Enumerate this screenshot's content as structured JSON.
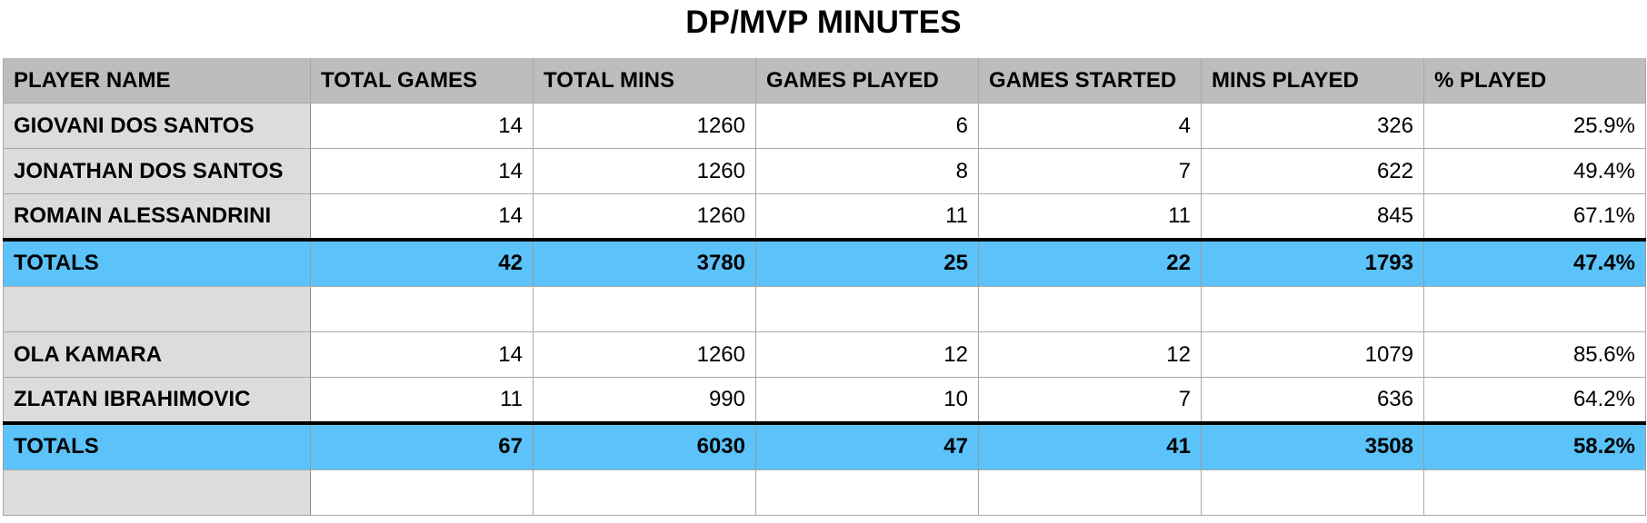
{
  "title": "DP/MVP MINUTES",
  "columns": [
    "PLAYER NAME",
    "TOTAL GAMES",
    "TOTAL MINS",
    "GAMES PLAYED",
    "GAMES STARTED",
    "MINS PLAYED",
    "% PLAYED"
  ],
  "rows": [
    {
      "type": "player",
      "cells": [
        "GIOVANI DOS SANTOS",
        "14",
        "1260",
        "6",
        "4",
        "326",
        "25.9%"
      ]
    },
    {
      "type": "player",
      "cells": [
        "JONATHAN DOS SANTOS",
        "14",
        "1260",
        "8",
        "7",
        "622",
        "49.4%"
      ]
    },
    {
      "type": "player",
      "cells": [
        "ROMAIN ALESSANDRINI",
        "14",
        "1260",
        "11",
        "11",
        "845",
        "67.1%"
      ]
    },
    {
      "type": "total",
      "cells": [
        "TOTALS",
        "42",
        "3780",
        "25",
        "22",
        "1793",
        "47.4%"
      ]
    },
    {
      "type": "blank",
      "cells": [
        "",
        "",
        "",
        "",
        "",
        "",
        ""
      ]
    },
    {
      "type": "player",
      "cells": [
        "OLA KAMARA",
        "14",
        "1260",
        "12",
        "12",
        "1079",
        "85.6%"
      ]
    },
    {
      "type": "player",
      "cells": [
        "ZLATAN IBRAHIMOVIC",
        "11",
        "990",
        "10",
        "7",
        "636",
        "64.2%"
      ]
    },
    {
      "type": "total",
      "cells": [
        "TOTALS",
        "67",
        "6030",
        "47",
        "41",
        "3508",
        "58.2%"
      ]
    },
    {
      "type": "blank",
      "cells": [
        "",
        "",
        "",
        "",
        "",
        "",
        ""
      ]
    }
  ],
  "colors": {
    "header_bg": "#bdbdbd",
    "name_col_bg": "#dcdcdc",
    "totals_bg": "#5bc3fa"
  }
}
